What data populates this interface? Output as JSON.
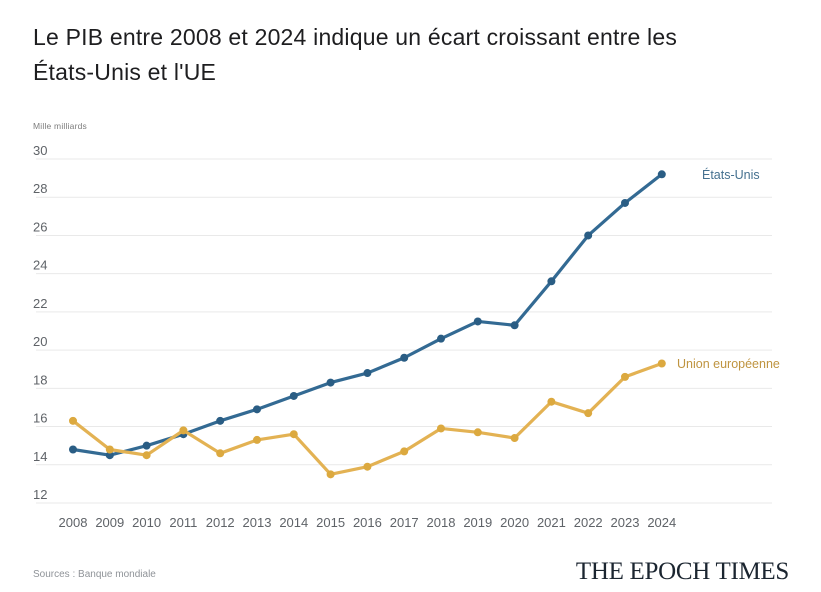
{
  "header": {
    "title_line1": "Le PIB entre 2008 et 2024 indique un écart croissant entre les",
    "title_line2": "États-Unis et l'UE"
  },
  "chart_data": {
    "type": "line",
    "title": "Le PIB entre 2008 et 2024 indique un écart croissant entre les États-Unis et l'UE",
    "xlabel": "",
    "ylabel": "Mille milliards",
    "x": [
      2008,
      2009,
      2010,
      2011,
      2012,
      2013,
      2014,
      2015,
      2016,
      2017,
      2018,
      2019,
      2020,
      2021,
      2022,
      2023,
      2024
    ],
    "series": [
      {
        "name": "États-Unis",
        "color": "#336a93",
        "point_color": "#2a5d84",
        "label_color": "#44708f",
        "values": [
          14.8,
          14.5,
          15.0,
          15.6,
          16.3,
          16.9,
          17.6,
          18.3,
          18.8,
          19.6,
          20.6,
          21.5,
          21.3,
          23.6,
          26.0,
          27.7,
          29.2
        ]
      },
      {
        "name": "Union européenne",
        "color": "#e3b253",
        "point_color": "#dca93f",
        "label_color": "#bf9440",
        "values": [
          16.3,
          14.8,
          14.5,
          15.8,
          14.6,
          15.3,
          15.6,
          13.5,
          13.9,
          14.7,
          15.9,
          15.7,
          15.4,
          17.3,
          16.7,
          18.6,
          19.3
        ]
      }
    ],
    "ylim": [
      12,
      30
    ],
    "yticks": [
      12,
      14,
      16,
      18,
      20,
      22,
      24,
      26,
      28,
      30
    ],
    "grid": true,
    "legend_position": "end-of-line"
  },
  "footer": {
    "source": "Sources : Banque mondiale",
    "brand": "THE EPOCH TIMES"
  },
  "colors": {
    "background": "#ffffff",
    "title_text": "#1e1e20",
    "axis_text": "#5f6368",
    "gridline": "#e9e9e9",
    "unit_text": "#7d7d7d",
    "source_text": "#8f9398",
    "brand_text": "#1b2530"
  }
}
